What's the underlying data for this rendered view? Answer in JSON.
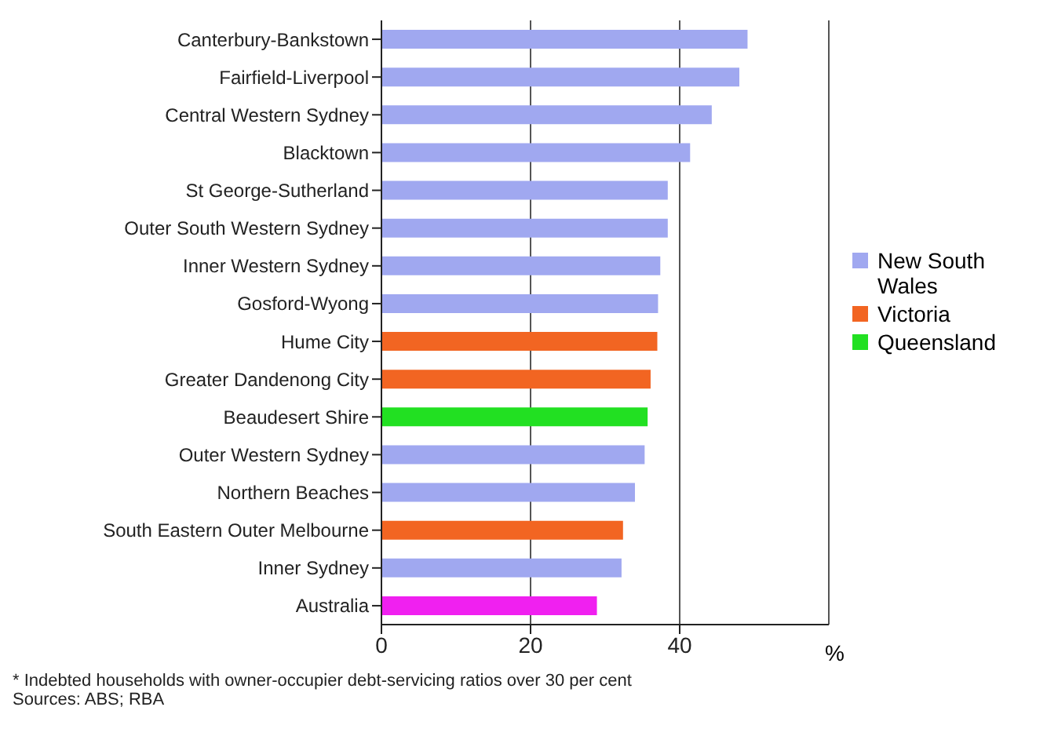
{
  "chart_data": {
    "type": "bar",
    "orientation": "horizontal",
    "stacked": true,
    "categories": [
      "Canterbury-Bankstown",
      "Fairfield-Liverpool",
      "Central Western Sydney",
      "Blacktown",
      "St George-Sutherland",
      "Outer South Western Sydney",
      "Inner Western Sydney",
      "Gosford-Wyong",
      "Hume City",
      "Greater Dandenong City",
      "Beaudesert Shire",
      "Outer Western Sydney",
      "Northern Beaches",
      "South Eastern Outer Melbourne",
      "Inner Sydney",
      "Australia"
    ],
    "series": [
      {
        "name": "New South Wales",
        "color": "#a0a8f0",
        "values": [
          49.1,
          48.0,
          44.3,
          41.4,
          38.4,
          38.4,
          37.4,
          37.1,
          null,
          null,
          null,
          35.3,
          34.0,
          null,
          32.2,
          null
        ]
      },
      {
        "name": "Victoria",
        "color": "#f26522",
        "values": [
          null,
          null,
          null,
          null,
          null,
          null,
          null,
          null,
          37.0,
          36.1,
          null,
          null,
          null,
          32.4,
          null,
          null
        ]
      },
      {
        "name": "Queensland",
        "color": "#22e022",
        "values": [
          null,
          null,
          null,
          null,
          null,
          null,
          null,
          null,
          null,
          null,
          35.7,
          null,
          null,
          null,
          null,
          null
        ]
      },
      {
        "color": "#f020f0",
        "values": [
          null,
          null,
          null,
          null,
          null,
          null,
          null,
          null,
          null,
          null,
          null,
          null,
          null,
          null,
          null,
          28.9
        ]
      }
    ],
    "xlim": [
      0,
      60
    ],
    "xticks": [
      0,
      20,
      40
    ],
    "xlabel": "%",
    "grid": "x",
    "legend": "right",
    "annotations": [
      "* Indebted households with owner-occupier debt-servicing ratios over 30 per cent",
      "Sources: ABS; RBA"
    ]
  }
}
